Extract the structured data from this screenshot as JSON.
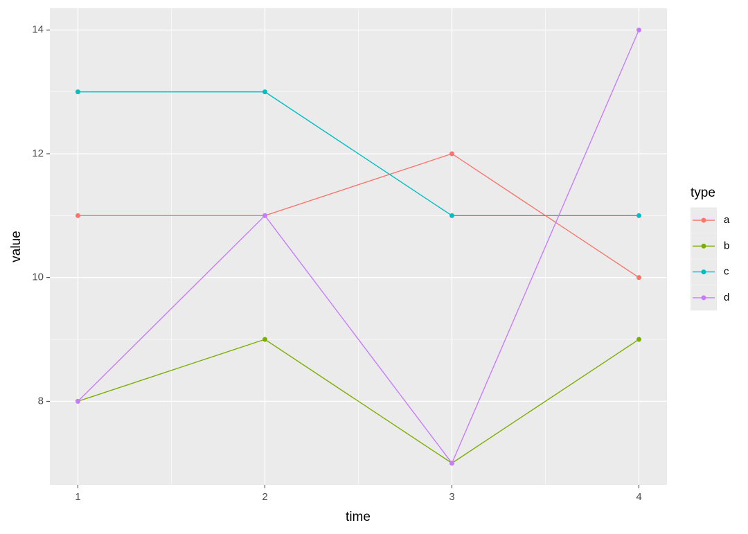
{
  "chart_data": {
    "type": "line",
    "x_label": "time",
    "y_label": "value",
    "x": [
      1,
      2,
      3,
      4
    ],
    "series": [
      {
        "name": "a",
        "color": "#F8766D",
        "values": [
          11,
          11,
          12,
          10
        ]
      },
      {
        "name": "b",
        "color": "#7CAE00",
        "values": [
          8,
          9,
          7,
          9
        ]
      },
      {
        "name": "c",
        "color": "#00BFC4",
        "values": [
          13,
          13,
          11,
          11
        ]
      },
      {
        "name": "d",
        "color": "#C77CFF",
        "values": [
          8,
          11,
          7,
          14
        ]
      }
    ],
    "xlim": [
      0.85,
      4.15
    ],
    "xticks": [
      1,
      2,
      3,
      4
    ],
    "ylim": [
      6.65,
      14.35
    ],
    "yticks": [
      8,
      10,
      12,
      14
    ],
    "grid": true,
    "legend_title": "type",
    "legend_position": "right"
  }
}
